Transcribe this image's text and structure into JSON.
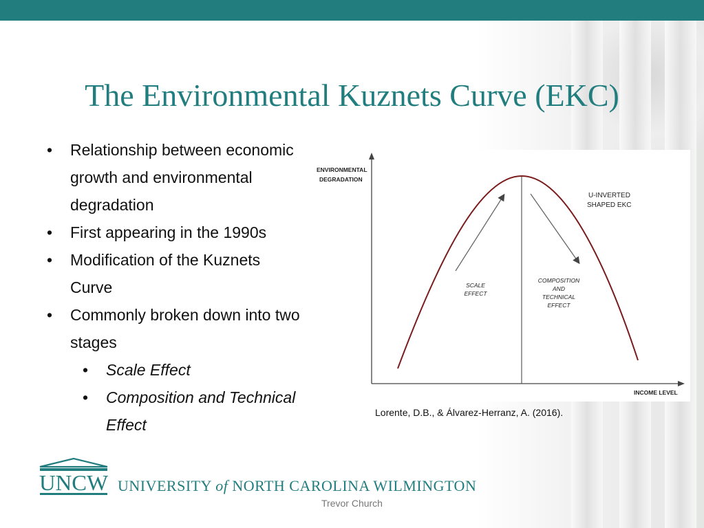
{
  "slide": {
    "title": "The Environmental Kuznets Curve (EKC)",
    "accent_color": "#227d7f",
    "bullets": [
      {
        "text": "Relationship between economic growth and environmental degradation",
        "level": 1
      },
      {
        "text": "First appearing in the 1990s",
        "level": 1
      },
      {
        "text": "Modification of the Kuznets Curve",
        "level": 1
      },
      {
        "text": "Commonly broken down into two stages",
        "level": 1
      },
      {
        "text": "Scale Effect",
        "level": 2
      },
      {
        "text": "Composition and Technical Effect",
        "level": 2
      }
    ],
    "figure": {
      "y_axis_label_line1": "ENVIRONMENTAL",
      "y_axis_label_line2": "DEGRADATION",
      "x_axis_label": "INCOME LEVEL",
      "curve_label_line1": "U-INVERTED",
      "curve_label_line2": "SHAPED EKC",
      "left_region_line1": "SCALE",
      "left_region_line2": "EFFECT",
      "right_region_line1": "COMPOSITION",
      "right_region_line2": "AND",
      "right_region_line3": "TECHNICAL",
      "right_region_line4": "EFFECT",
      "curve_color": "#7a1c1c"
    },
    "citation": "Lorente, D.B., & Álvarez-Herranz, A. (2016).",
    "logo_text": "UNCW",
    "university": {
      "part1": "UNIVERSITY",
      "part2": "of",
      "part3": "NORTH CAROLINA WILMINGTON"
    },
    "author": "Trevor Church"
  }
}
